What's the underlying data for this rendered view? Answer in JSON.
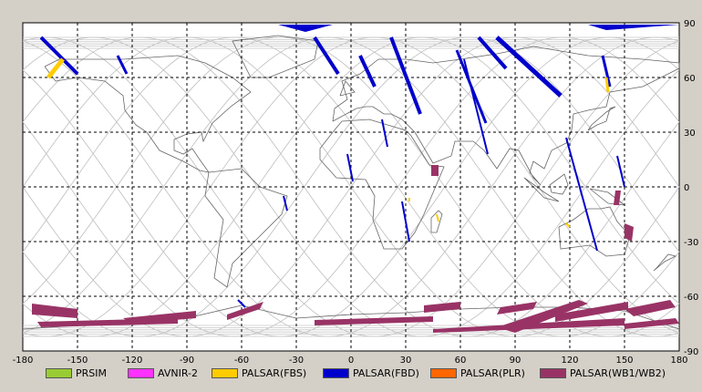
{
  "map": {
    "x_ticks": [
      "-180",
      "-150",
      "-120",
      "-90",
      "-60",
      "-30",
      "0",
      "30",
      "60",
      "90",
      "120",
      "150",
      "180"
    ],
    "y_ticks": [
      "90",
      "60",
      "30",
      "0",
      "-30",
      "-60",
      "-90"
    ],
    "lon_range": [
      -180,
      180
    ],
    "lat_range": [
      -90,
      90
    ],
    "grid": "dashed",
    "background": "#ffffff",
    "frame": "#d4d0c8"
  },
  "legend": {
    "items": [
      {
        "label": "PRSIM",
        "color": "#99cc33"
      },
      {
        "label": "AVNIR-2",
        "color": "#ff33ff"
      },
      {
        "label": "PALSAR(FBS)",
        "color": "#ffcc00"
      },
      {
        "label": "PALSAR(FBD)",
        "color": "#0000cc"
      },
      {
        "label": "PALSAR(PLR)",
        "color": "#ff6600"
      },
      {
        "label": "PALSAR(WB1/WB2)",
        "color": "#993366"
      }
    ]
  }
}
